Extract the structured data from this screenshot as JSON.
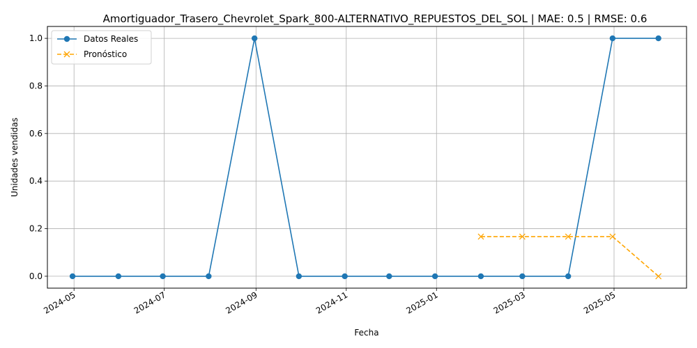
{
  "chart_data": {
    "type": "line",
    "title": "Amortiguador_Trasero_Chevrolet_Spark_800-ALTERNATIVO_REPUESTOS_DEL_SOL | MAE: 0.5 | RMSE: 0.6",
    "xlabel": "Fecha",
    "ylabel": "Unidades vendidas",
    "x_ticks": [
      "2024-05",
      "2024-07",
      "2024-09",
      "2024-11",
      "2025-01",
      "2025-03",
      "2025-05"
    ],
    "y_ticks": [
      "0.0",
      "0.2",
      "0.4",
      "0.6",
      "0.8",
      "1.0"
    ],
    "ylim": [
      -0.05,
      1.05
    ],
    "xlim": [
      "2024-04-13",
      "2025-06-19"
    ],
    "grid": true,
    "legend_position": "upper-left",
    "series": [
      {
        "name": "Datos Reales",
        "color": "#1f77b4",
        "marker": "circle",
        "linestyle": "solid",
        "x": [
          "2024-04-30",
          "2024-05-31",
          "2024-06-30",
          "2024-07-31",
          "2024-08-31",
          "2024-09-30",
          "2024-10-31",
          "2024-11-30",
          "2024-12-31",
          "2025-01-31",
          "2025-02-28",
          "2025-03-31",
          "2025-04-30",
          "2025-05-31"
        ],
        "values": [
          0,
          0,
          0,
          0,
          1,
          0,
          0,
          0,
          0,
          0,
          0,
          0,
          1,
          1
        ]
      },
      {
        "name": "Pronóstico",
        "color": "#ffa500",
        "marker": "x",
        "linestyle": "dashed",
        "x": [
          "2025-01-31",
          "2025-02-28",
          "2025-03-31",
          "2025-04-30",
          "2025-05-31"
        ],
        "values": [
          0.1667,
          0.1667,
          0.1667,
          0.1667,
          0
        ]
      }
    ]
  }
}
